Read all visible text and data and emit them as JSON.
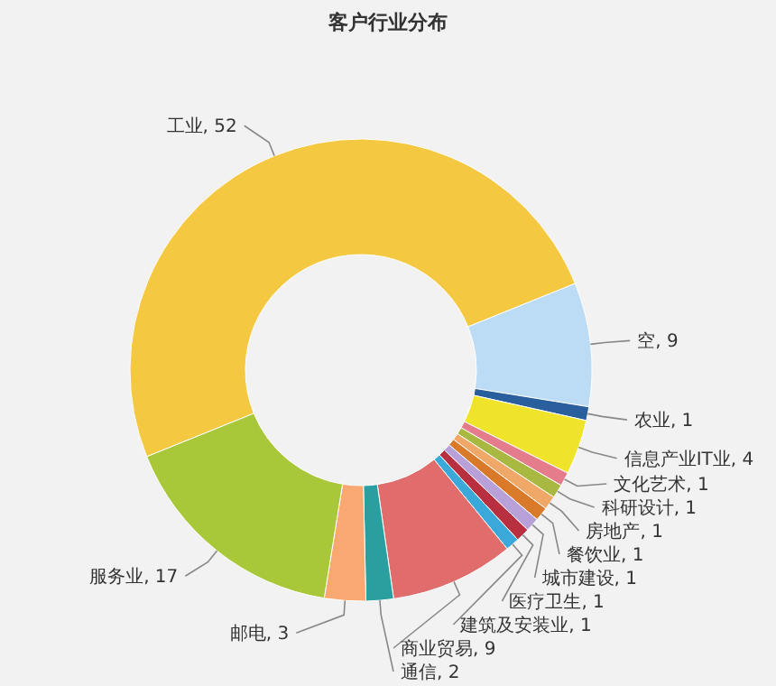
{
  "chart_data": {
    "type": "donut",
    "title": "客户行业分布",
    "categories": [
      "工业",
      "空",
      "农业",
      "信息产业IT业",
      "文化艺术",
      "科研设计",
      "房地产",
      "餐饮业",
      "城市建设",
      "医疗卫生",
      "建筑及安装业",
      "商业贸易",
      "通信",
      "邮电",
      "服务业"
    ],
    "values": [
      52,
      9,
      1,
      4,
      1,
      1,
      1,
      1,
      1,
      1,
      1,
      9,
      2,
      3,
      17
    ],
    "colors": [
      "#f5c842",
      "#bcdcf5",
      "#2a5f9e",
      "#f0e42a",
      "#e57c8c",
      "#a8b840",
      "#f0a868",
      "#d87a2a",
      "#b8a0d8",
      "#b83040",
      "#3aa8d8",
      "#e06c6c",
      "#2a9fa0",
      "#f8a870",
      "#a8c83a"
    ],
    "value_labels": [
      ", 52",
      ", 9",
      ", 1",
      ", 4",
      ", 1",
      ", 1",
      ", 1",
      ", 1",
      ", 1",
      ", 1",
      ", 1",
      ", 9",
      ", 2",
      ", 3",
      ", 17"
    ]
  }
}
